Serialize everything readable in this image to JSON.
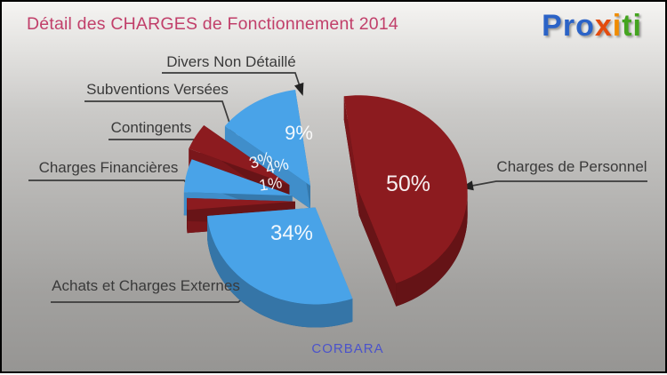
{
  "header": {
    "title": "Détail des CHARGES de Fonctionnement 2014",
    "title_color": "#c13f6a"
  },
  "logo": {
    "text": "Proxiti",
    "letters": [
      {
        "ch": "P",
        "color": "#2b63c7"
      },
      {
        "ch": "r",
        "color": "#2b63c7"
      },
      {
        "ch": "o",
        "color": "#2b63c7"
      },
      {
        "ch": "x",
        "color": "#e34b0e"
      },
      {
        "ch": "i",
        "color": "#f08c00"
      },
      {
        "ch": "t",
        "color": "#44a41f"
      },
      {
        "ch": "i",
        "color": "#44a41f"
      }
    ]
  },
  "chart_data": {
    "type": "pie",
    "title": "Détail des CHARGES de Fonctionnement 2014",
    "unit": "%",
    "style": "3d-exploded",
    "legend_position": "callouts",
    "slices": [
      {
        "label": "Charges de Personnel",
        "value": 50,
        "color": "#8c1b1f"
      },
      {
        "label": "Achats et Charges Externes",
        "value": 34,
        "color": "#49a3e8"
      },
      {
        "label": "Charges Financières",
        "value": 1,
        "color": "#8c1b1f"
      },
      {
        "label": "Contingents",
        "value": 4,
        "color": "#49a3e8"
      },
      {
        "label": "Subventions Versées",
        "value": 3,
        "color": "#8c1b1f"
      },
      {
        "label": "Divers Non Détaillé",
        "value": 9,
        "color": "#49a3e8"
      }
    ],
    "footer": "CORBARA",
    "footer_color": "#4b53cb"
  },
  "palette": {
    "slice_red": "#8c1b1f",
    "slice_blue": "#49a3e8",
    "title_text": "#c13f6a",
    "footer_text": "#4b53cb",
    "callout_text": "#3a3a3a",
    "background_top": "#f5f4f2",
    "background_bottom": "#969593",
    "border": "#000000"
  }
}
